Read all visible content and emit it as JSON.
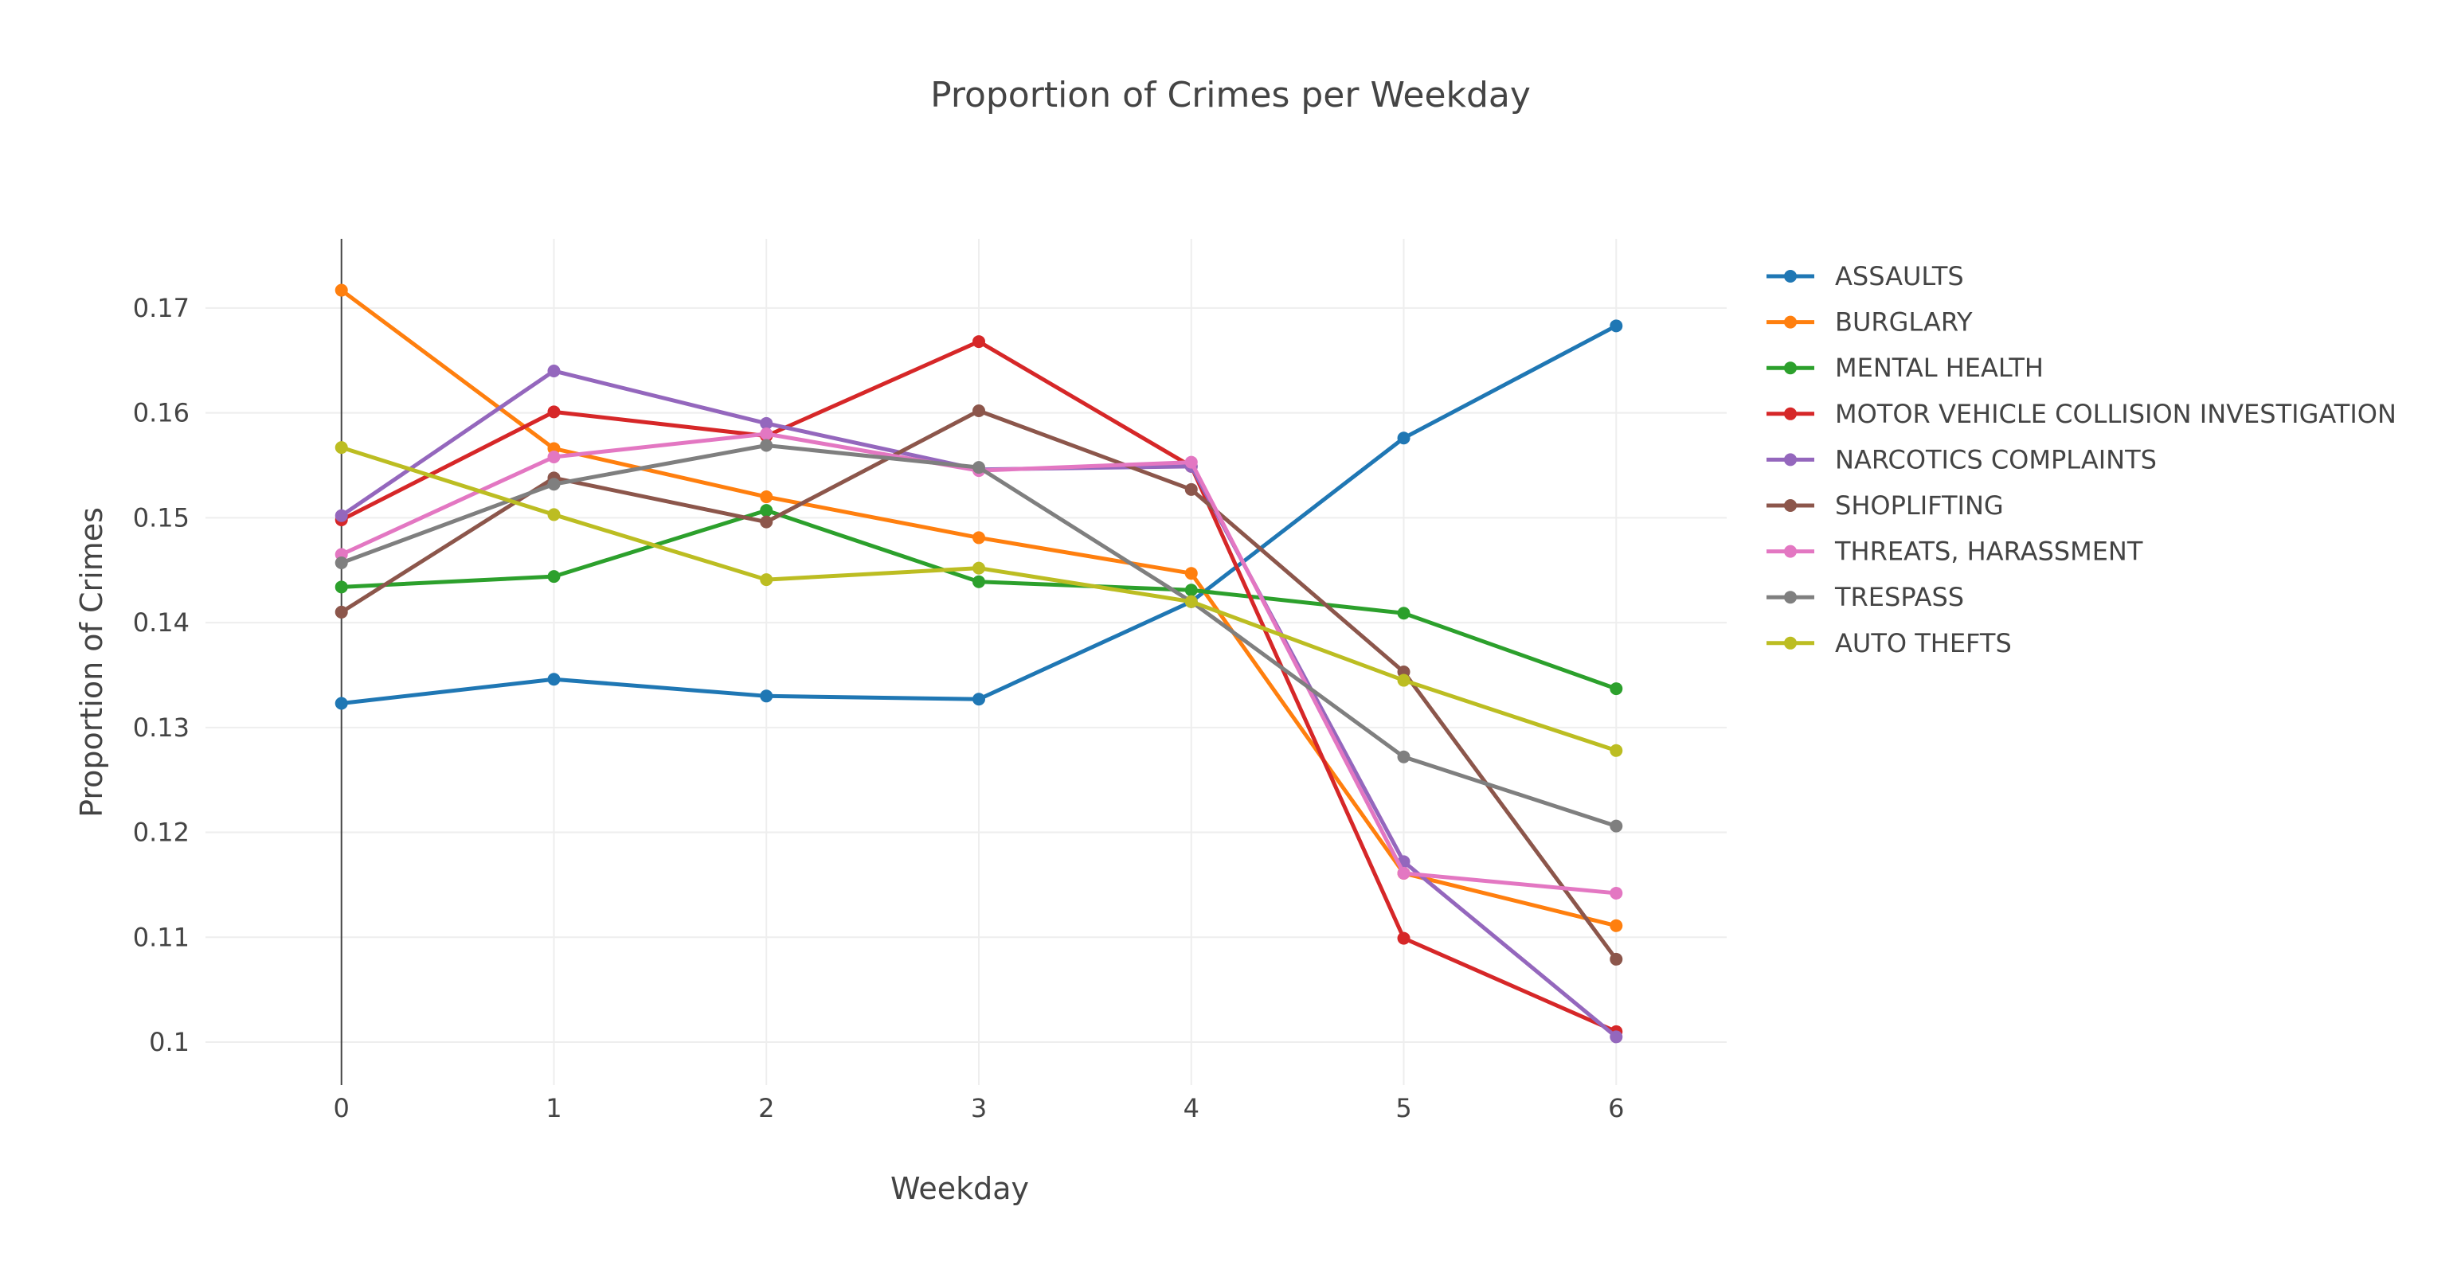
{
  "chart_data": {
    "type": "line",
    "title": "Proportion of Crimes per Weekday",
    "xlabel": "Weekday",
    "ylabel": "Proportion of Crimes",
    "x": [
      0,
      1,
      2,
      3,
      4,
      5,
      6
    ],
    "x_tick_labels": [
      "0",
      "1",
      "2",
      "3",
      "4",
      "5",
      "6"
    ],
    "xlim": [
      -0.64,
      6.52
    ],
    "ylim": [
      0.0959,
      0.1766
    ],
    "y_ticks": [
      0.1,
      0.11,
      0.12,
      0.13,
      0.14,
      0.15,
      0.16,
      0.17
    ],
    "y_tick_labels": [
      "0.1",
      "0.11",
      "0.12",
      "0.13",
      "0.14",
      "0.15",
      "0.16",
      "0.17"
    ],
    "grid": true,
    "legend_position": "right",
    "series": [
      {
        "name": "ASSAULTS",
        "color": "#1f77b4",
        "values": [
          0.1323,
          0.1346,
          0.133,
          0.1327,
          0.142,
          0.1576,
          0.1683
        ]
      },
      {
        "name": "BURGLARY",
        "color": "#ff7f0e",
        "values": [
          0.1717,
          0.1566,
          0.152,
          0.1481,
          0.1447,
          0.1161,
          0.1111
        ]
      },
      {
        "name": "MENTAL HEALTH",
        "color": "#2ca02c",
        "values": [
          0.1434,
          0.1444,
          0.1507,
          0.1439,
          0.1431,
          0.1409,
          0.1337
        ]
      },
      {
        "name": "MOTOR VEHICLE COLLISION INVESTIGATION",
        "color": "#d62728",
        "values": [
          0.1498,
          0.1601,
          0.1578,
          0.1668,
          0.1549,
          0.1099,
          0.101
        ]
      },
      {
        "name": "NARCOTICS COMPLAINTS",
        "color": "#9467bd",
        "values": [
          0.1502,
          0.164,
          0.159,
          0.1546,
          0.1549,
          0.1172,
          0.1005
        ]
      },
      {
        "name": "SHOPLIFTING",
        "color": "#8c564b",
        "values": [
          0.141,
          0.1538,
          0.1496,
          0.1602,
          0.1527,
          0.1353,
          0.1079
        ]
      },
      {
        "name": "THREATS, HARASSMENT",
        "color": "#e377c2",
        "values": [
          0.1465,
          0.1558,
          0.158,
          0.1545,
          0.1553,
          0.1161,
          0.1142
        ]
      },
      {
        "name": "TRESPASS",
        "color": "#7f7f7f",
        "values": [
          0.1457,
          0.1532,
          0.1569,
          0.1548,
          0.142,
          0.1272,
          0.1206
        ]
      },
      {
        "name": "AUTO THEFTS",
        "color": "#bcbd22",
        "values": [
          0.1567,
          0.1503,
          0.1441,
          0.1452,
          0.142,
          0.1345,
          0.1278
        ]
      }
    ]
  }
}
